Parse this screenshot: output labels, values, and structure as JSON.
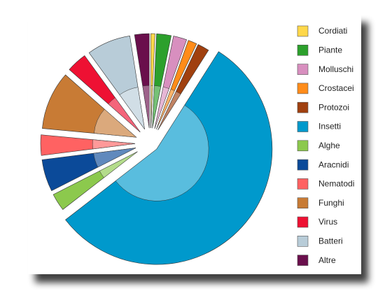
{
  "chart_data": {
    "type": "pie",
    "categories": [
      "Cordiati",
      "Piante",
      "Molluschi",
      "Crostacei",
      "Protozoi",
      "Insetti",
      "Alghe",
      "Aracnidi",
      "Nematodi",
      "Funghi",
      "Virus",
      "Batteri",
      "Altre"
    ],
    "values": [
      0.7,
      2.5,
      2.3,
      1.5,
      2,
      55.5,
      3,
      5.5,
      3.5,
      10,
      3.5,
      7.5,
      2.5
    ],
    "colors": [
      "#ffd84a",
      "#2ca02c",
      "#d88fbf",
      "#ff8c1a",
      "#a0400f",
      "#0099cc",
      "#8cc94d",
      "#0b4a99",
      "#ff6262",
      "#c87b35",
      "#ee1133",
      "#b8ccd8",
      "#6a0f4c"
    ],
    "legend": "right"
  }
}
